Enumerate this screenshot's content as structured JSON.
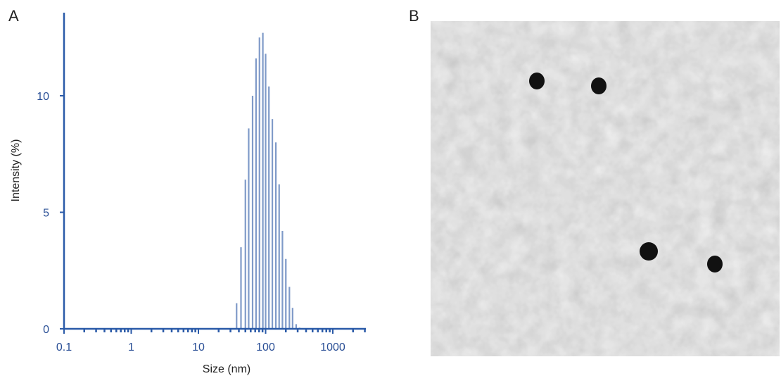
{
  "panels": {
    "a_label": "A",
    "b_label": "B"
  },
  "chart_data": {
    "type": "bar",
    "xlabel": "Size (nm)",
    "ylabel": "Intensity (%)",
    "x_scale": "log",
    "xlim": [
      0.1,
      3000
    ],
    "ylim": [
      0,
      13
    ],
    "x_ticks": [
      {
        "value": 0.1,
        "label": "0.1"
      },
      {
        "value": 1,
        "label": "1"
      },
      {
        "value": 10,
        "label": "10"
      },
      {
        "value": 100,
        "label": "100"
      },
      {
        "value": 1000,
        "label": "1000"
      }
    ],
    "y_ticks": [
      {
        "value": 0,
        "label": "0"
      },
      {
        "value": 5,
        "label": "5"
      },
      {
        "value": 10,
        "label": "10"
      }
    ],
    "grid": false,
    "color": "#7f9ac8",
    "axis_color": "#2a5aa8",
    "x": [
      37,
      43,
      50,
      56,
      64,
      72,
      81,
      91,
      100,
      112,
      126,
      142,
      159,
      178,
      200,
      226,
      252,
      285,
      320
    ],
    "values": [
      1.1,
      3.5,
      6.4,
      8.6,
      10.0,
      11.6,
      12.5,
      12.7,
      11.8,
      10.4,
      9.0,
      8.0,
      6.2,
      4.2,
      3.0,
      1.8,
      0.9,
      0.2,
      0.05
    ]
  },
  "tem_image": {
    "background": "#bdbdbd",
    "particle_color": "#111111"
  }
}
